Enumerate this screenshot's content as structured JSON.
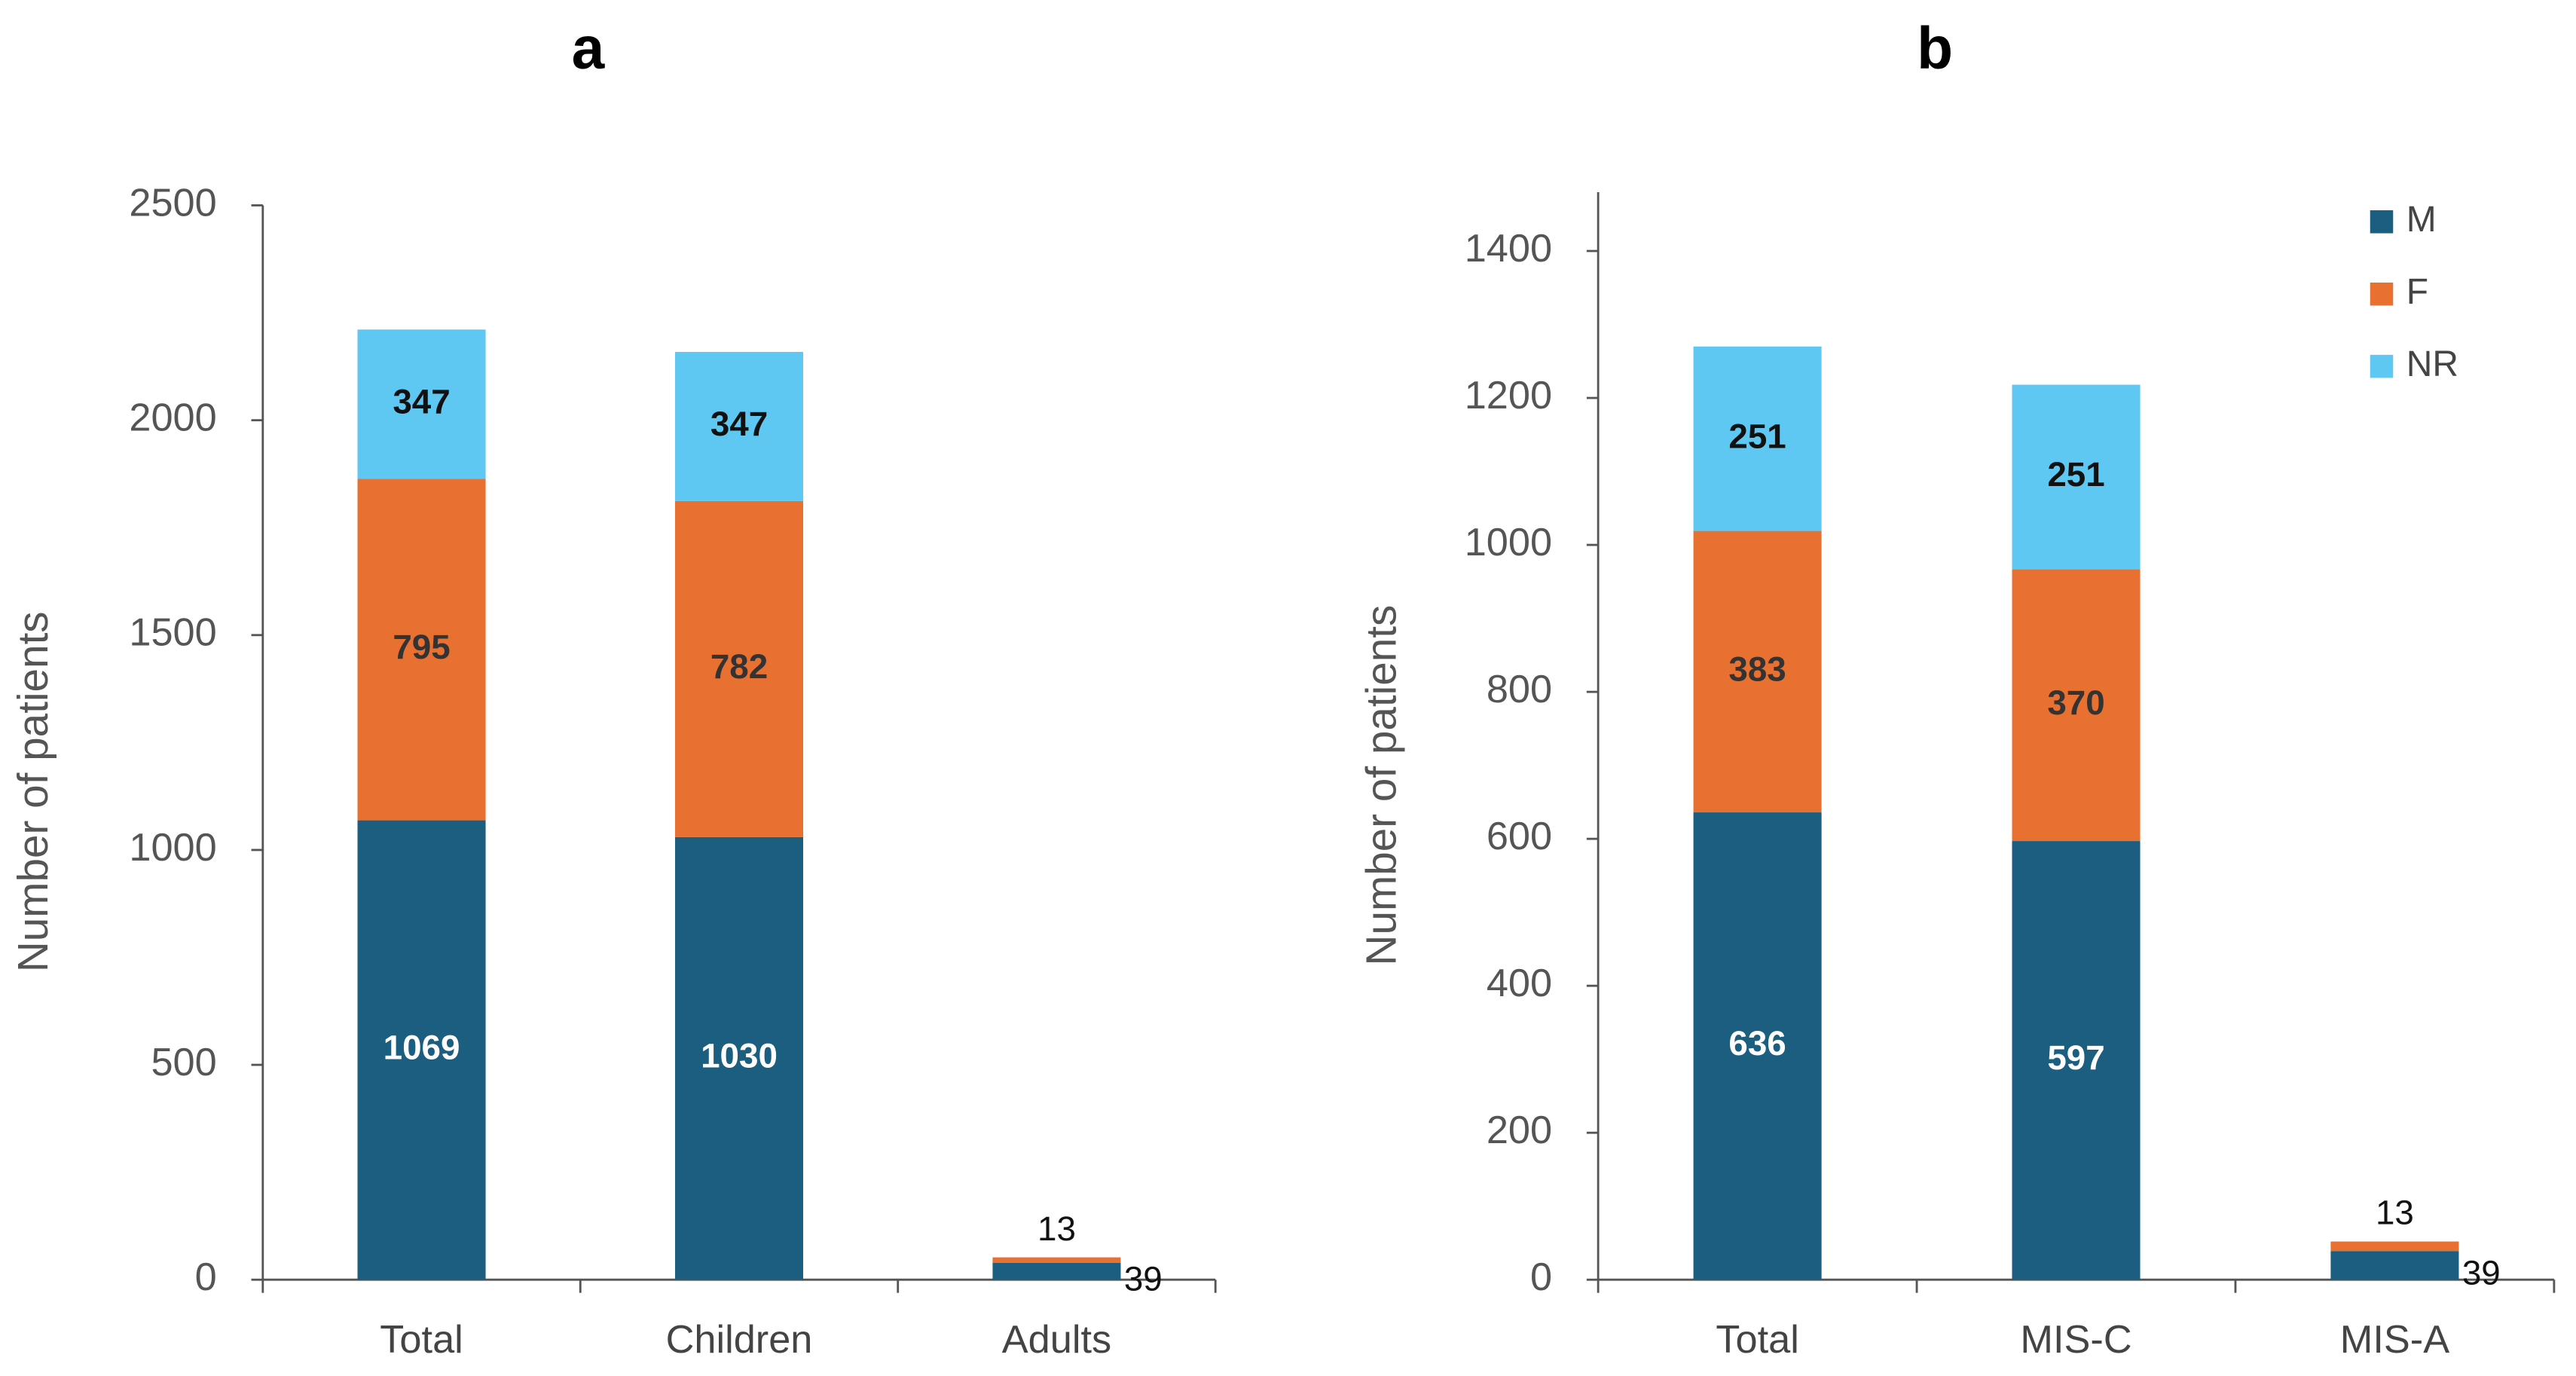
{
  "chart_data": [
    {
      "type": "stacked_bar",
      "title": "a",
      "y_label": "Number of patients",
      "categories": [
        "Total",
        "Children",
        "Adults"
      ],
      "series": [
        {
          "color": "#1b5e7f",
          "values": [
            1069,
            1030,
            39
          ]
        },
        {
          "color": "#e87030",
          "values": [
            795,
            782,
            13
          ]
        },
        {
          "color": "#5ec8f2",
          "values": [
            347,
            347,
            null
          ]
        }
      ],
      "ylim": [
        0,
        2500
      ],
      "yticks": [
        0,
        500,
        1000,
        1500,
        2000,
        2500
      ],
      "grid": false
    },
    {
      "type": "stacked_bar",
      "title": "b",
      "y_label": "Number of patients",
      "categories": [
        "Total",
        "MIS-C",
        "MIS-A"
      ],
      "series": [
        {
          "name": "M",
          "color": "#1b5e7f",
          "values": [
            636,
            597,
            39
          ]
        },
        {
          "name": "F",
          "color": "#e87030",
          "values": [
            383,
            370,
            13
          ]
        },
        {
          "name": "NR",
          "color": "#5ec8f2",
          "values": [
            251,
            251,
            null
          ]
        }
      ],
      "ylim": [
        0,
        1480
      ],
      "yticks": [
        0,
        200,
        400,
        600,
        800,
        1000,
        1200,
        1400
      ],
      "grid": false,
      "legend": "upper right"
    }
  ]
}
